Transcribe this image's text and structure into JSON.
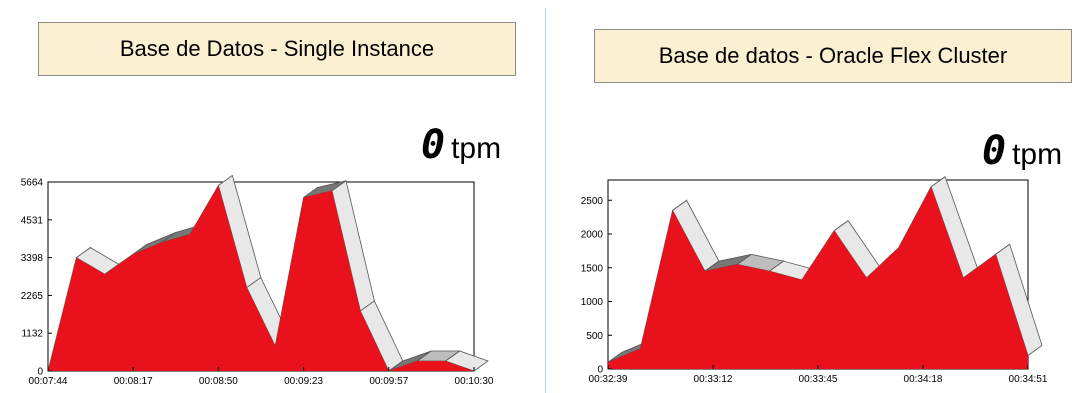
{
  "panels": [
    {
      "title": "Base de Datos - Single Instance",
      "tpm_value": "0",
      "tpm_unit": "tpm"
    },
    {
      "title": "Base de datos - Oracle Flex Cluster",
      "tpm_value": "0",
      "tpm_unit": "tpm"
    }
  ],
  "chart_data": [
    {
      "type": "area",
      "title": "",
      "xlabel": "",
      "ylabel": "",
      "x": [
        "00:07:44",
        "",
        "",
        "00:08:17",
        "",
        "",
        "00:08:50",
        "",
        "",
        "00:09:23",
        "",
        "",
        "00:09:57",
        "",
        "",
        "00:10:30"
      ],
      "x_ticks": [
        "00:07:44",
        "00:08:17",
        "00:08:50",
        "00:09:23",
        "00:09:57",
        "00:10:30"
      ],
      "y_ticks": [
        "0",
        "1132",
        "2265",
        "3398",
        "4531",
        "5664"
      ],
      "ylim": [
        0,
        5664
      ],
      "series": [
        {
          "values": [
            0,
            3398,
            2900,
            3500,
            3850,
            4100,
            5560,
            2500,
            750,
            5200,
            5400,
            1800,
            0,
            300,
            300,
            0
          ]
        }
      ],
      "fill_color": "#e8111c",
      "grid": false,
      "style": "3d"
    },
    {
      "type": "area",
      "title": "",
      "xlabel": "",
      "ylabel": "",
      "x": [
        "00:32:39",
        "",
        "",
        "00:33:12",
        "",
        "",
        "00:33:45",
        "",
        "",
        "00:34:18",
        "",
        "",
        "00:34:51",
        ""
      ],
      "x_ticks": [
        "00:32:39",
        "00:33:12",
        "00:33:45",
        "00:34:18",
        "00:34:51"
      ],
      "y_ticks": [
        "0",
        "500",
        "1000",
        "1500",
        "2000",
        "2500"
      ],
      "ylim": [
        0,
        2800
      ],
      "series": [
        {
          "values": [
            100,
            300,
            2350,
            1450,
            1550,
            1450,
            1320,
            2050,
            1350,
            1800,
            2700,
            1350,
            1700,
            200
          ]
        }
      ],
      "fill_color": "#e8111c",
      "grid": false,
      "style": "3d"
    }
  ]
}
